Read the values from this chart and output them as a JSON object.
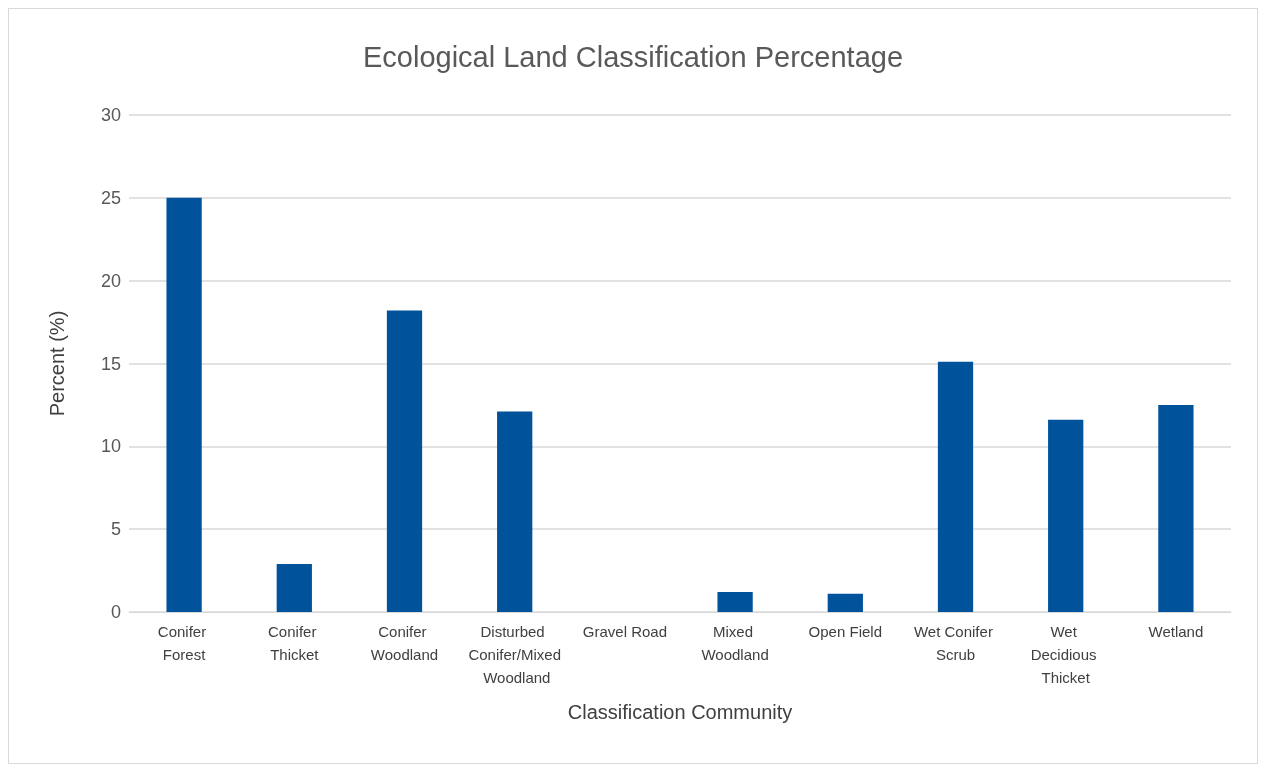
{
  "chart_data": {
    "type": "bar",
    "title": "Ecological Land Classification Percentage",
    "xlabel": "Classification Community",
    "ylabel": "Percent (%)",
    "categories": [
      "Conifer Forest",
      "Conifer Thicket",
      "Conifer Woodland",
      "Disturbed Conifer/Mixed Woodland",
      "Gravel Road",
      "Mixed Woodland",
      "Open Field",
      "Wet Conifer Scrub",
      "Wet Decidious Thicket",
      "Wetland"
    ],
    "values": [
      25.0,
      2.9,
      18.2,
      12.1,
      0,
      1.2,
      1.1,
      15.1,
      11.6,
      12.5
    ],
    "color": "#00529b",
    "ylim": [
      0,
      30
    ],
    "yticks": [
      0,
      5,
      10,
      15,
      20,
      25,
      30
    ],
    "grid": "y"
  }
}
